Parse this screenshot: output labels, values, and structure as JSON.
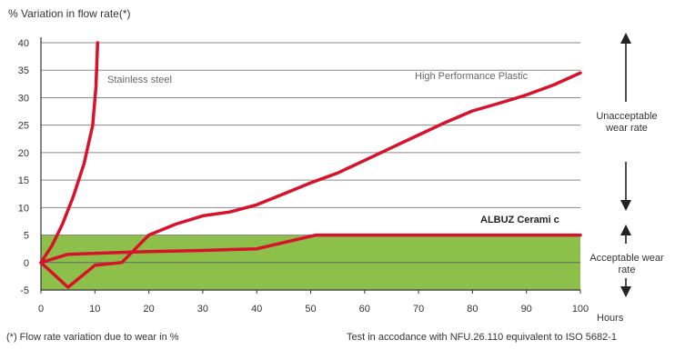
{
  "chart_data": {
    "type": "line",
    "ylabel": "% Variation in flow rate(*)",
    "xlabel": "Hours",
    "xlim": [
      0,
      100
    ],
    "ylim": [
      -5,
      40
    ],
    "x_ticks": [
      0,
      10,
      20,
      30,
      40,
      50,
      60,
      70,
      80,
      90,
      100
    ],
    "y_ticks": [
      -5,
      0,
      5,
      10,
      15,
      20,
      25,
      30,
      35,
      40
    ],
    "grid": true,
    "band": {
      "from": -5,
      "to": 5,
      "color": "#8cc04b"
    },
    "series": [
      {
        "name": "Stainless steel",
        "color": "#d7122a",
        "points": [
          [
            0,
            0
          ],
          [
            2,
            3
          ],
          [
            4,
            7
          ],
          [
            6,
            12
          ],
          [
            8,
            18
          ],
          [
            9.6,
            25
          ],
          [
            10.2,
            32
          ],
          [
            10.5,
            40
          ]
        ]
      },
      {
        "name": "High Performance Plastic",
        "color": "#d7122a",
        "points": [
          [
            0,
            0
          ],
          [
            5,
            -4.5
          ],
          [
            10,
            -0.5
          ],
          [
            15,
            0
          ],
          [
            20,
            5
          ],
          [
            25,
            7
          ],
          [
            30,
            8.5
          ],
          [
            35,
            9.2
          ],
          [
            40,
            10.5
          ],
          [
            45,
            12.5
          ],
          [
            50,
            14.5
          ],
          [
            55,
            16.3
          ],
          [
            60,
            18.6
          ],
          [
            65,
            20.9
          ],
          [
            70,
            23.2
          ],
          [
            75,
            25.5
          ],
          [
            80,
            27.6
          ],
          [
            85,
            29.0
          ],
          [
            90,
            30.5
          ],
          [
            95,
            32.3
          ],
          [
            100,
            34.5
          ]
        ]
      },
      {
        "name": "ALBUZ Cerami c",
        "color": "#d7122a",
        "points": [
          [
            0,
            0
          ],
          [
            5,
            1.5
          ],
          [
            20,
            2
          ],
          [
            30,
            2.2
          ],
          [
            40,
            2.5
          ],
          [
            51,
            5
          ],
          [
            100,
            5
          ]
        ]
      }
    ],
    "annotations": {
      "unacceptable": "Unacceptable wear rate",
      "acceptable": "Acceptable wear rate"
    },
    "footnote": "(*) Flow rate variation due to wear in %",
    "test_note": "Test in accodance with NFU.26.110 equivalent to ISO 5682-1"
  }
}
